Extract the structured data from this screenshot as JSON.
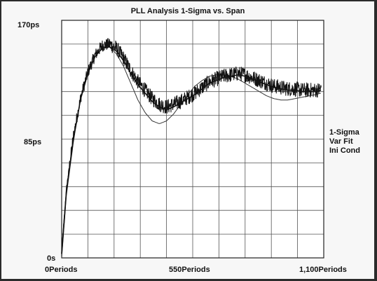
{
  "chart_data": {
    "type": "line",
    "title": "PLL Analysis 1-Sigma vs. Span",
    "xlabel": "",
    "ylabel": "",
    "x_ticks": [
      "0Periods",
      "550Periods",
      "1,100Periods"
    ],
    "y_ticks": [
      "0s",
      "85ps",
      "170ps"
    ],
    "xlim": [
      0,
      1100
    ],
    "ylim": [
      0,
      170
    ],
    "grid": true,
    "legend_position": "right",
    "series": [
      {
        "name": "1-Sigma",
        "color": "#111111",
        "noisy": true,
        "x": [
          0,
          20,
          50,
          80,
          110,
          140,
          170,
          200,
          230,
          260,
          290,
          320,
          350,
          380,
          410,
          440,
          470,
          500,
          530,
          560,
          590,
          620,
          650,
          680,
          710,
          740,
          770,
          800,
          830,
          860,
          890,
          920,
          950,
          980,
          1010,
          1040,
          1070,
          1090
        ],
        "y": [
          5,
          50,
          88,
          115,
          133,
          145,
          152,
          153,
          150,
          143,
          134,
          126,
          120,
          114,
          110,
          108,
          110,
          112,
          115,
          118,
          122,
          126,
          128,
          130,
          131,
          132,
          131,
          129,
          127,
          125,
          123,
          122,
          121,
          121,
          120,
          120,
          120,
          121
        ]
      },
      {
        "name": "Var Fit",
        "color": "#111111",
        "x": [
          0,
          20,
          50,
          80,
          110,
          140,
          170,
          200,
          230,
          260,
          290,
          320,
          350,
          380,
          410,
          440,
          470,
          500,
          530,
          560,
          590,
          620,
          650,
          680,
          710,
          740,
          770,
          800,
          830,
          860,
          890,
          920,
          950,
          980,
          1010,
          1040,
          1070,
          1090
        ],
        "y": [
          3,
          48,
          86,
          114,
          132,
          144,
          150,
          151,
          148,
          141,
          132,
          124,
          118,
          112,
          108,
          106,
          108,
          111,
          114,
          117,
          121,
          125,
          127,
          129,
          130,
          131,
          130,
          128,
          126,
          124,
          122,
          121,
          120,
          120,
          119,
          119,
          119,
          120
        ]
      },
      {
        "name": "Ini Cond",
        "color": "#333333",
        "x": [
          0,
          20,
          50,
          80,
          110,
          140,
          170,
          200,
          230,
          260,
          290,
          320,
          350,
          380,
          410,
          440,
          470,
          500,
          530,
          560,
          590,
          620,
          650,
          680,
          710,
          740,
          770,
          800,
          830,
          860,
          890,
          920,
          950,
          980,
          1010,
          1040,
          1070,
          1090
        ],
        "y": [
          0,
          45,
          84,
          114,
          134,
          146,
          151,
          151,
          146,
          137,
          125,
          113,
          104,
          98,
          96,
          98,
          103,
          110,
          117,
          123,
          127,
          130,
          131,
          131,
          130,
          128,
          125,
          122,
          119,
          116,
          114,
          113,
          113,
          114,
          115,
          116,
          117,
          118
        ]
      }
    ]
  }
}
